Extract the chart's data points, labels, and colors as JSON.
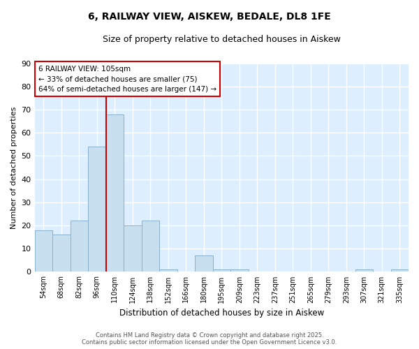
{
  "title": "6, RAILWAY VIEW, AISKEW, BEDALE, DL8 1FE",
  "subtitle": "Size of property relative to detached houses in Aiskew",
  "xlabel": "Distribution of detached houses by size in Aiskew",
  "ylabel": "Number of detached properties",
  "categories": [
    "54sqm",
    "68sqm",
    "82sqm",
    "96sqm",
    "110sqm",
    "124sqm",
    "138sqm",
    "152sqm",
    "166sqm",
    "180sqm",
    "195sqm",
    "209sqm",
    "223sqm",
    "237sqm",
    "251sqm",
    "265sqm",
    "279sqm",
    "293sqm",
    "307sqm",
    "321sqm",
    "335sqm"
  ],
  "values": [
    18,
    16,
    22,
    54,
    68,
    20,
    22,
    1,
    0,
    7,
    1,
    1,
    0,
    0,
    0,
    0,
    0,
    0,
    1,
    0,
    1
  ],
  "bar_color": "#c8dff0",
  "bar_edge_color": "#8ab0cc",
  "ylim": [
    0,
    90
  ],
  "yticks": [
    0,
    10,
    20,
    30,
    40,
    50,
    60,
    70,
    80,
    90
  ],
  "annotation_text": "6 RAILWAY VIEW: 105sqm\n← 33% of detached houses are smaller (75)\n64% of semi-detached houses are larger (147) →",
  "annotation_box_color": "#ffffff",
  "annotation_border_color": "#cc0000",
  "footer_line1": "Contains HM Land Registry data © Crown copyright and database right 2025.",
  "footer_line2": "Contains public sector information licensed under the Open Government Licence v3.0.",
  "fig_background": "#ffffff",
  "plot_background": "#ddeeff",
  "grid_color": "#ffffff",
  "red_line_color": "#cc0000"
}
